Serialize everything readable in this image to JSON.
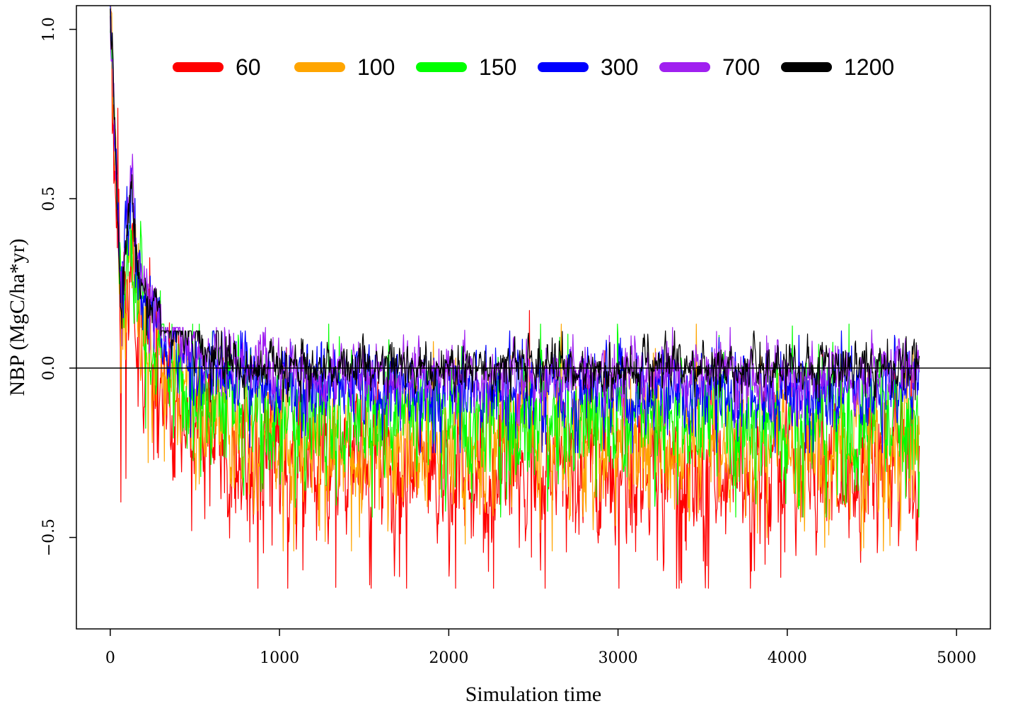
{
  "chart_data": {
    "type": "line",
    "title": "",
    "xlabel": "Simulation time",
    "ylabel": "NBP (MgC/ha*yr)",
    "xlim": [
      -200,
      5200
    ],
    "ylim": [
      -0.77,
      1.07
    ],
    "xticks": [
      0,
      1000,
      2000,
      3000,
      4000,
      5000
    ],
    "xtick_labels": [
      "0",
      "1000",
      "2000",
      "3000",
      "4000",
      "5000"
    ],
    "yticks": [
      -0.5,
      0.0,
      0.5,
      1.0
    ],
    "ytick_labels": [
      "−0.5",
      "0.0",
      "0.5",
      "1.0"
    ],
    "reference_line_y": 0,
    "grid": false,
    "legend_placement": "top (horizontal, inside plot)",
    "series": [
      {
        "name": "60",
        "color": "#ff0000",
        "x_end": 4780,
        "start": 1.03,
        "peak": 0.28,
        "baseline": -0.3,
        "noise": 0.09,
        "min": -0.65,
        "max": 0.17
      },
      {
        "name": "100",
        "color": "#ffa500",
        "x_end": 4780,
        "start": 1.05,
        "peak": 0.38,
        "baseline": -0.22,
        "noise": 0.08,
        "min": -0.54,
        "max": 0.13
      },
      {
        "name": "150",
        "color": "#00ff00",
        "x_end": 4780,
        "start": 1.07,
        "peak": 0.42,
        "baseline": -0.15,
        "noise": 0.07,
        "min": -0.44,
        "max": 0.13
      },
      {
        "name": "300",
        "color": "#0000ff",
        "x_end": 4780,
        "start": 1.07,
        "peak": 0.48,
        "baseline": -0.07,
        "noise": 0.05,
        "min": -0.25,
        "max": 0.11
      },
      {
        "name": "700",
        "color": "#a020f0",
        "x_end": 4780,
        "start": 1.07,
        "peak": 0.54,
        "baseline": -0.02,
        "noise": 0.04,
        "min": -0.17,
        "max": 0.12
      },
      {
        "name": "1200",
        "color": "#000000",
        "x_end": 4780,
        "start": 1.07,
        "peak": 0.5,
        "baseline": 0.0,
        "noise": 0.03,
        "min": -0.1,
        "max": 0.11
      }
    ]
  }
}
